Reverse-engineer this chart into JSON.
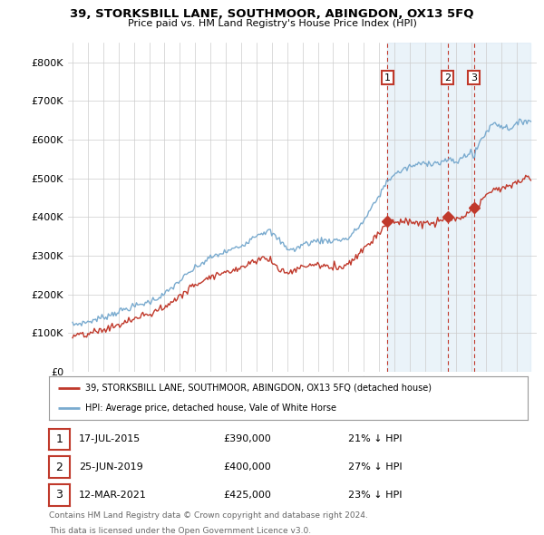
{
  "title": "39, STORKSBILL LANE, SOUTHMOOR, ABINGDON, OX13 5FQ",
  "subtitle": "Price paid vs. HM Land Registry's House Price Index (HPI)",
  "ylim": [
    0,
    850000
  ],
  "yticks": [
    0,
    100000,
    200000,
    300000,
    400000,
    500000,
    600000,
    700000,
    800000
  ],
  "ytick_labels": [
    "£0",
    "£100K",
    "£200K",
    "£300K",
    "£400K",
    "£500K",
    "£600K",
    "£700K",
    "£800K"
  ],
  "hpi_color": "#7aabcf",
  "price_color": "#c0392b",
  "vline_color": "#c0392b",
  "shade_color": "#d6e8f5",
  "sale_markers": [
    {
      "year": 2015.54,
      "price": 390000,
      "label": "1"
    },
    {
      "year": 2019.48,
      "price": 400000,
      "label": "2"
    },
    {
      "year": 2021.19,
      "price": 425000,
      "label": "3"
    }
  ],
  "legend_house": "39, STORKSBILL LANE, SOUTHMOOR, ABINGDON, OX13 5FQ (detached house)",
  "legend_hpi": "HPI: Average price, detached house, Vale of White Horse",
  "table_rows": [
    {
      "num": "1",
      "date": "17-JUL-2015",
      "price": "£390,000",
      "note": "21% ↓ HPI"
    },
    {
      "num": "2",
      "date": "25-JUN-2019",
      "price": "£400,000",
      "note": "27% ↓ HPI"
    },
    {
      "num": "3",
      "date": "12-MAR-2021",
      "price": "£425,000",
      "note": "23% ↓ HPI"
    }
  ],
  "footnote1": "Contains HM Land Registry data © Crown copyright and database right 2024.",
  "footnote2": "This data is licensed under the Open Government Licence v3.0.",
  "background_color": "#ffffff",
  "grid_color": "#cccccc"
}
